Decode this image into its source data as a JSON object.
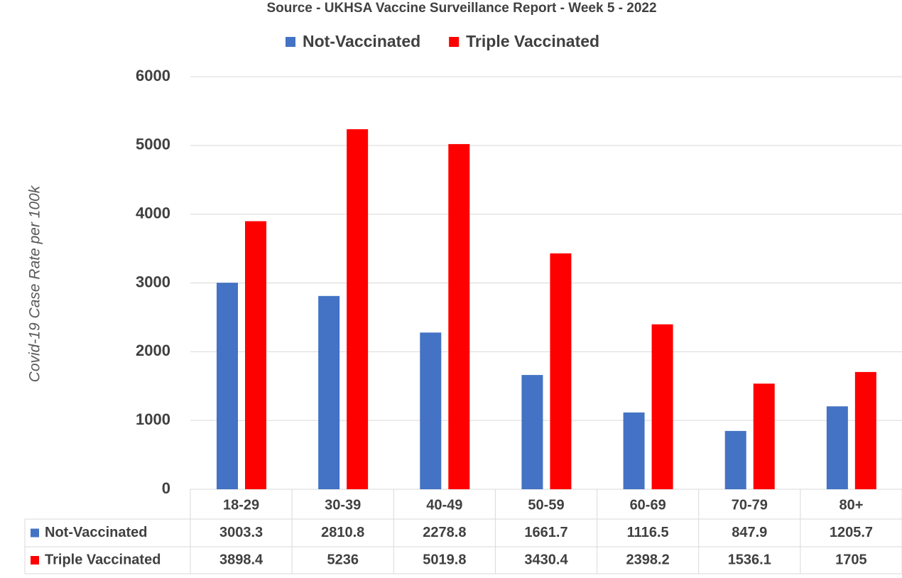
{
  "chart_data": {
    "type": "bar",
    "title": "Source - UKHSA Vaccine Surveillance Report - Week 5 - 2022",
    "y_label": "Covid-19 Case Rate per 100k",
    "categories": [
      "18-29",
      "30-39",
      "40-49",
      "50-59",
      "60-69",
      "70-79",
      "80+"
    ],
    "series": [
      {
        "name": "Not-Vaccinated",
        "color": "#4472c4",
        "values": [
          3003.3,
          2810.8,
          2278.8,
          1661.7,
          1116.5,
          847.9,
          1205.7
        ]
      },
      {
        "name": "Triple Vaccinated",
        "color": "#ff0000",
        "values": [
          3898.4,
          5236,
          5019.8,
          3430.4,
          2398.2,
          1536.1,
          1705
        ]
      }
    ],
    "ylim": [
      0,
      6000
    ],
    "yticks": [
      0,
      1000,
      2000,
      3000,
      4000,
      5000,
      6000
    ],
    "grid": true,
    "legend": "top"
  }
}
